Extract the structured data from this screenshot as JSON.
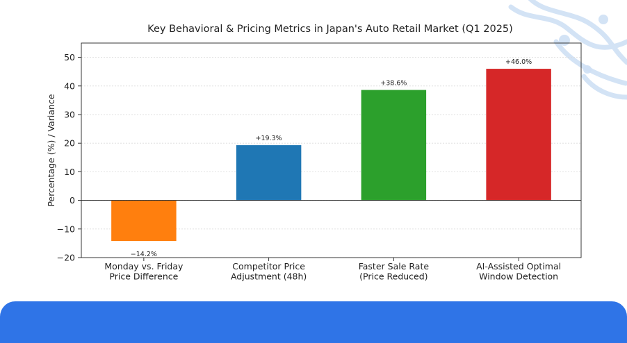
{
  "chart_data": {
    "type": "bar",
    "title": "Key Behavioral & Pricing Metrics in Japan's Auto Retail Market (Q1 2025)",
    "ylabel": "Percentage (%) / Variance",
    "xlabel": "",
    "ylim": [
      -20,
      55
    ],
    "yticks": [
      -20,
      -10,
      0,
      10,
      20,
      30,
      40,
      50
    ],
    "ytick_labels": [
      "−20",
      "−10",
      "0",
      "10",
      "20",
      "30",
      "40",
      "50"
    ],
    "grid": true,
    "categories": [
      [
        "Monday vs. Friday",
        "Price Difference"
      ],
      [
        "Competitor Price",
        "Adjustment (48h)"
      ],
      [
        "Faster Sale Rate",
        "(Price Reduced)"
      ],
      [
        "AI-Assisted Optimal",
        "Window Detection"
      ]
    ],
    "values": [
      -14.2,
      19.3,
      38.6,
      46.0
    ],
    "data_labels": [
      "−14.2%",
      "+19.3%",
      "+38.6%",
      "+46.0%"
    ],
    "colors": [
      "#ff7f0e",
      "#1f77b4",
      "#2ca02c",
      "#d62728"
    ]
  },
  "decoration": {
    "band_color": "#2f74e7",
    "circuit_color": "#cfe0f5"
  }
}
